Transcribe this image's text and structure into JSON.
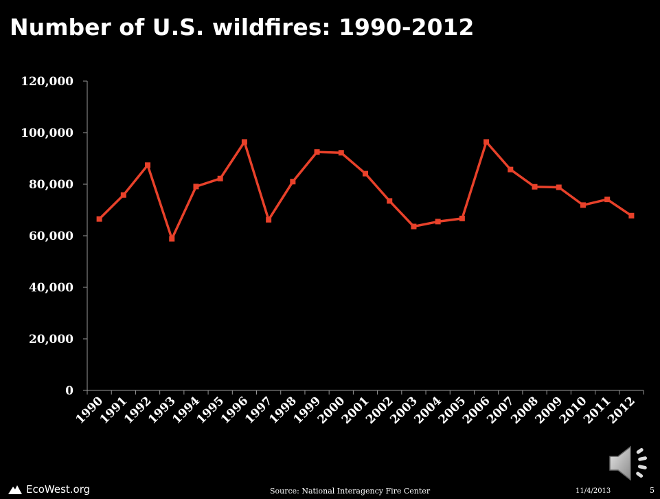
{
  "slide": {
    "title": "Number of U.S. wildfires: 1990-2012",
    "logo_text": "EcoWest.org",
    "source": "Source:  National Interagency Fire Center",
    "date": "11/4/2013",
    "page_number": "5",
    "icons": [
      "mountain-logo-icon",
      "speaker-icon"
    ]
  },
  "colors": {
    "background": "#000000",
    "line": "#e8412a",
    "axis": "#9a9a9a",
    "text": "#ffffff"
  },
  "chart_data": {
    "type": "line",
    "title": "Number of U.S. wildfires: 1990-2012",
    "xlabel": "",
    "ylabel": "",
    "categories": [
      "1990",
      "1991",
      "1992",
      "1993",
      "1994",
      "1995",
      "1996",
      "1997",
      "1998",
      "1999",
      "2000",
      "2001",
      "2002",
      "2003",
      "2004",
      "2005",
      "2006",
      "2007",
      "2008",
      "2009",
      "2010",
      "2011",
      "2012"
    ],
    "series": [
      {
        "values": [
          66500,
          75800,
          87400,
          58800,
          79100,
          82200,
          96400,
          66200,
          81000,
          92500,
          92200,
          84100,
          73500,
          63600,
          65500,
          66700,
          96400,
          85700,
          79000,
          78800,
          71900,
          74100,
          67800
        ]
      }
    ],
    "ylim": [
      0,
      120000
    ],
    "yticks": [
      0,
      20000,
      40000,
      60000,
      80000,
      100000,
      120000
    ],
    "ytick_labels": [
      "0",
      "20,000",
      "40,000",
      "60,000",
      "80,000",
      "100,000",
      "120,000"
    ],
    "grid": false,
    "legend": "none"
  }
}
